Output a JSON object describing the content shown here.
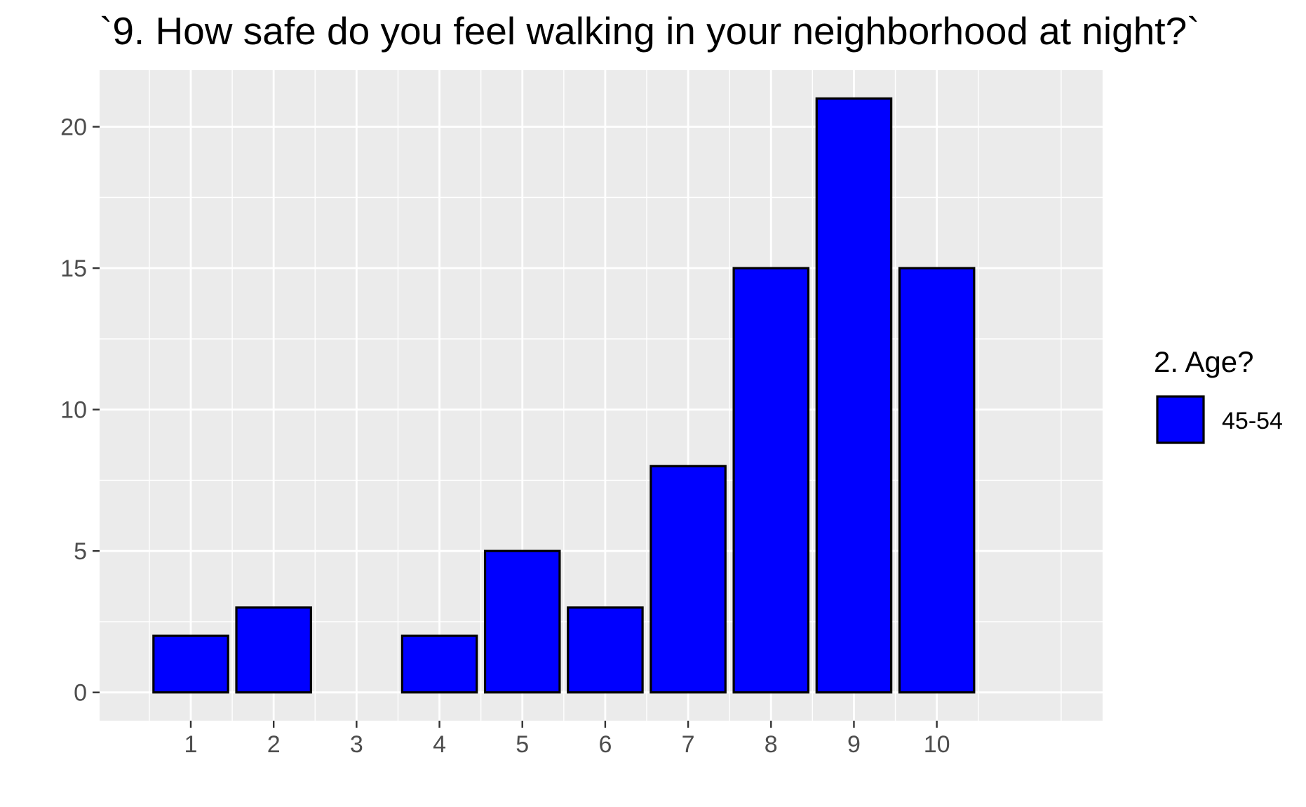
{
  "chart_data": {
    "type": "bar",
    "title": "`9. How safe do you feel walking in your neighborhood at night?`",
    "xlabel": "",
    "ylabel": "",
    "categories": [
      "1",
      "2",
      "3",
      "4",
      "5",
      "6",
      "7",
      "8",
      "9",
      "10"
    ],
    "series": [
      {
        "name": "45-54",
        "values": [
          2,
          3,
          0,
          2,
          5,
          3,
          8,
          15,
          21,
          15
        ]
      }
    ],
    "ylim": [
      -1,
      22
    ],
    "xlim": [
      -0.1,
      12.0
    ],
    "yticks": [
      0,
      5,
      10,
      15,
      20
    ],
    "grid": true,
    "legend": {
      "title": "2. Age?",
      "placement": "right",
      "entries": [
        "45-54"
      ]
    },
    "colors": {
      "bar_fill": "#0000ff",
      "bar_stroke": "#000000",
      "panel_background": "#ebebeb",
      "grid": "#ffffff",
      "tick_text": "#4d4d4d"
    }
  }
}
